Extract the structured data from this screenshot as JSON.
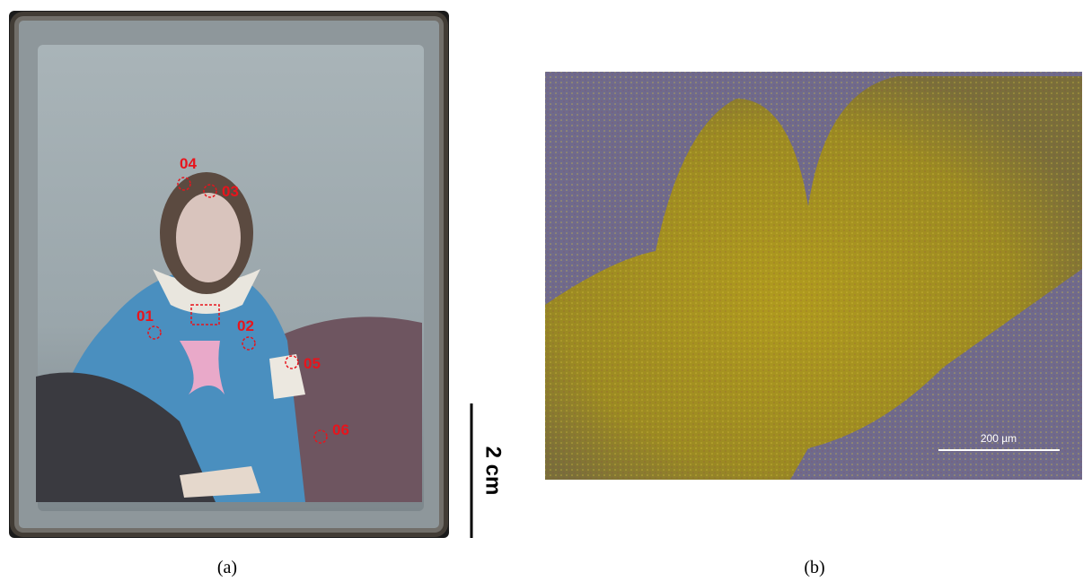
{
  "panels": [
    {
      "label": "(a)",
      "markers": [
        "04",
        "03",
        "01",
        "02",
        "05",
        "06"
      ],
      "scale_bar": "2 cm"
    },
    {
      "label": "(b)",
      "scale_bar": "200 µm"
    }
  ]
}
